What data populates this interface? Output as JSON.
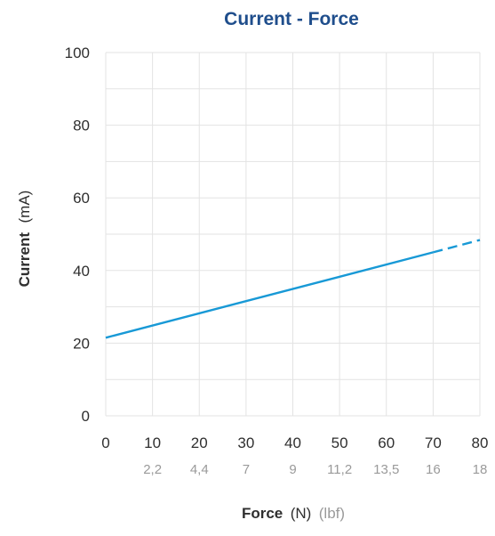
{
  "chart_data": {
    "type": "line",
    "title": "Current - Force",
    "xlabel": {
      "name": "Force",
      "unit": "(N)",
      "secondary_unit": "(lbf)"
    },
    "ylabel": {
      "name": "Current",
      "unit": "(mA)"
    },
    "x_ticks": [
      "0",
      "10",
      "20",
      "30",
      "40",
      "50",
      "60",
      "70",
      "80"
    ],
    "x_secondary_ticks": [
      "2,2",
      "4,4",
      "7",
      "9",
      "11,2",
      "13,5",
      "16",
      "18"
    ],
    "y_ticks": [
      "0",
      "20",
      "40",
      "60",
      "80",
      "100"
    ],
    "xlim": [
      0,
      80
    ],
    "ylim": [
      0,
      100
    ],
    "grid": true,
    "series": [
      {
        "x": [
          0,
          70
        ],
        "y": [
          21.5,
          45
        ],
        "style": "solid"
      },
      {
        "x": [
          70,
          80
        ],
        "y": [
          45,
          48.4
        ],
        "style": "dashed"
      }
    ],
    "colors": {
      "line": "#1899d6",
      "title": "#1f4e8c",
      "grid": "#e3e3e3"
    }
  }
}
